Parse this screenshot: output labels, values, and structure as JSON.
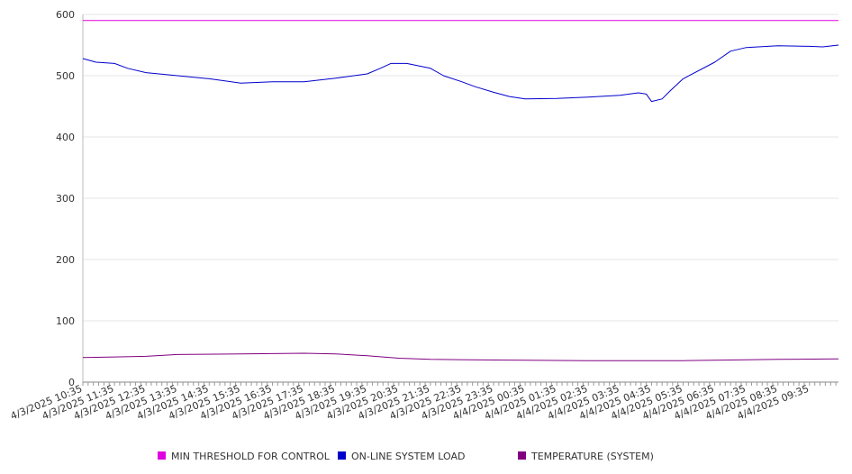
{
  "chart_data": {
    "type": "line",
    "ylim": [
      0,
      600
    ],
    "y_ticks": [
      0,
      100,
      200,
      300,
      400,
      500,
      600
    ],
    "grid": "horizontal",
    "legend_position": "bottom",
    "x_tick_labels": [
      "4/3/2025 10:35",
      "4/3/2025 11:35",
      "4/3/2025 12:35",
      "4/3/2025 13:35",
      "4/3/2025 14:35",
      "4/3/2025 15:35",
      "4/3/2025 16:35",
      "4/3/2025 17:35",
      "4/3/2025 18:35",
      "4/3/2025 19:35",
      "4/3/2025 20:35",
      "4/3/2025 21:35",
      "4/3/2025 22:35",
      "4/3/2025 23:35",
      "4/4/2025 00:35",
      "4/4/2025 01:35",
      "4/4/2025 02:35",
      "4/4/2025 03:35",
      "4/4/2025 04:35",
      "4/4/2025 05:35",
      "4/4/2025 06:35",
      "4/4/2025 07:35",
      "4/4/2025 08:35",
      "4/4/2025 09:35"
    ],
    "x_range": [
      "4/3/2025 10:35",
      "4/4/2025 10:30"
    ],
    "series": [
      {
        "name": "MIN THRESHOLD FOR CONTROL",
        "color": "#e000e0",
        "points": [
          [
            "4/3/2025 10:35",
            590
          ],
          [
            "4/4/2025 10:30",
            590
          ]
        ]
      },
      {
        "name": "ON-LINE SYSTEM LOAD",
        "color": "#0000cc",
        "points": [
          [
            "4/3/2025 10:35",
            528
          ],
          [
            "4/3/2025 11:00",
            522
          ],
          [
            "4/3/2025 11:35",
            520
          ],
          [
            "4/3/2025 12:00",
            512
          ],
          [
            "4/3/2025 12:35",
            505
          ],
          [
            "4/3/2025 13:35",
            500
          ],
          [
            "4/3/2025 14:35",
            495
          ],
          [
            "4/3/2025 15:00",
            492
          ],
          [
            "4/3/2025 15:35",
            488
          ],
          [
            "4/3/2025 16:35",
            490
          ],
          [
            "4/3/2025 17:35",
            490
          ],
          [
            "4/3/2025 18:35",
            496
          ],
          [
            "4/3/2025 19:35",
            503
          ],
          [
            "4/3/2025 20:00",
            512
          ],
          [
            "4/3/2025 20:20",
            520
          ],
          [
            "4/3/2025 20:50",
            520
          ],
          [
            "4/3/2025 21:35",
            512
          ],
          [
            "4/3/2025 22:00",
            500
          ],
          [
            "4/3/2025 22:35",
            490
          ],
          [
            "4/3/2025 23:00",
            482
          ],
          [
            "4/3/2025 23:35",
            473
          ],
          [
            "4/4/2025 00:05",
            466
          ],
          [
            "4/4/2025 00:35",
            462
          ],
          [
            "4/4/2025 01:35",
            463
          ],
          [
            "4/4/2025 02:35",
            465
          ],
          [
            "4/4/2025 03:35",
            468
          ],
          [
            "4/4/2025 04:10",
            472
          ],
          [
            "4/4/2025 04:25",
            470
          ],
          [
            "4/4/2025 04:35",
            458
          ],
          [
            "4/4/2025 04:55",
            462
          ],
          [
            "4/4/2025 05:10",
            475
          ],
          [
            "4/4/2025 05:35",
            495
          ],
          [
            "4/4/2025 06:35",
            522
          ],
          [
            "4/4/2025 07:05",
            540
          ],
          [
            "4/4/2025 07:35",
            546
          ],
          [
            "4/4/2025 08:35",
            549
          ],
          [
            "4/4/2025 09:35",
            548
          ],
          [
            "4/4/2025 10:00",
            547
          ],
          [
            "4/4/2025 10:30",
            550
          ]
        ]
      },
      {
        "name": "TEMPERATURE (SYSTEM)",
        "color": "#800080",
        "points": [
          [
            "4/3/2025 10:35",
            40
          ],
          [
            "4/3/2025 12:35",
            42
          ],
          [
            "4/3/2025 13:35",
            45
          ],
          [
            "4/3/2025 15:35",
            46
          ],
          [
            "4/3/2025 17:35",
            47
          ],
          [
            "4/3/2025 18:35",
            46
          ],
          [
            "4/3/2025 19:35",
            43
          ],
          [
            "4/3/2025 20:35",
            39
          ],
          [
            "4/3/2025 21:35",
            37
          ],
          [
            "4/3/2025 23:35",
            36
          ],
          [
            "4/4/2025 02:35",
            35
          ],
          [
            "4/4/2025 05:35",
            35
          ],
          [
            "4/4/2025 07:05",
            36
          ],
          [
            "4/4/2025 08:35",
            37
          ],
          [
            "4/4/2025 10:30",
            38
          ]
        ]
      }
    ]
  }
}
